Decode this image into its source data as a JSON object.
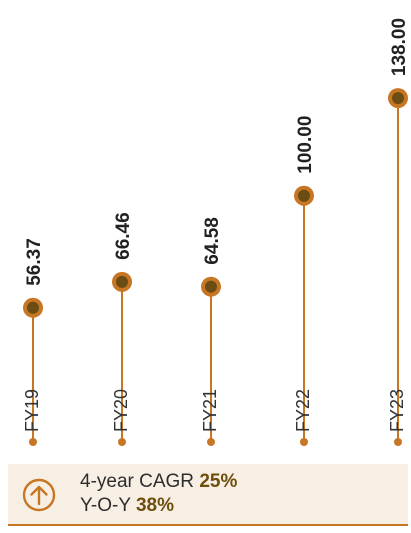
{
  "colors": {
    "accent": "#c77624",
    "marker_center": "#6b4c12",
    "value_text": "#222222",
    "highlight_text": "#6e4e0c",
    "footer_bg": "#f8efe4"
  },
  "chart_data": {
    "type": "lollipop",
    "categories": [
      "FY19",
      "FY20",
      "FY21",
      "FY22",
      "FY23"
    ],
    "values": [
      56.37,
      66.46,
      64.58,
      100.0,
      138.0
    ],
    "value_labels": [
      "56.37",
      "66.46",
      "64.58",
      "100.00",
      "138.00"
    ],
    "title": "",
    "xlabel": "",
    "ylabel": "",
    "grid": false,
    "legend": "none"
  },
  "footer": {
    "icon": "arrow-up-circle-icon",
    "cagr_label": "4-year CAGR",
    "cagr_value": "25%",
    "yoy_label": "Y-O-Y",
    "yoy_value": "38%"
  }
}
